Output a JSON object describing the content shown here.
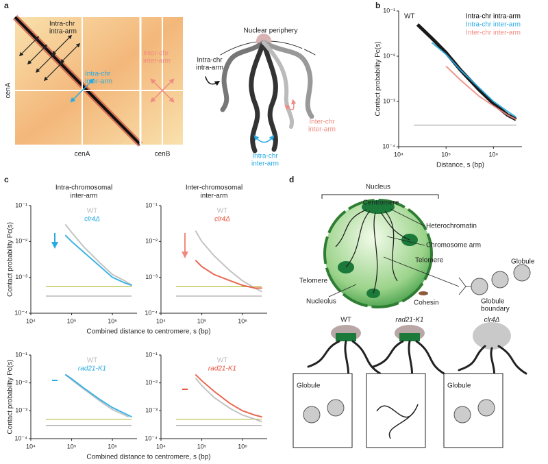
{
  "panel_letters": [
    "a",
    "b",
    "c",
    "d"
  ],
  "panel_a": {
    "heatmap": {
      "intra_intra": [
        "Intra-chr",
        "intra-arm"
      ],
      "intra_inter": [
        "Intra-chr",
        "inter-arm"
      ],
      "inter_inter": [
        "Inter-chr",
        "inter-arm"
      ],
      "y_label": "cenA",
      "x_labels": [
        "cenA",
        "cenB"
      ]
    },
    "sketch": {
      "periphery": "Nuclear periphery",
      "intra_intra": [
        "Intra-chr",
        "intra-arm"
      ],
      "inter_inter": [
        "Inter-chr",
        "inter-arm"
      ],
      "intra_inter": [
        "Intra-chr",
        "inter-arm"
      ]
    }
  },
  "chart_data": [
    {
      "type": "line",
      "title": "WT",
      "ylabel": "Contact probability Pc(s)",
      "xlabel": "Distance, s (bp)",
      "xlog": true,
      "ylog": true,
      "xlim": [
        10000,
        4000000
      ],
      "ylim": [
        0.0001,
        0.1
      ],
      "xticks": [
        {
          "value": 10000,
          "label": "10⁴"
        },
        {
          "value": 100000,
          "label": "10⁵"
        },
        {
          "value": 1000000,
          "label": "10⁶"
        }
      ],
      "yticks": [
        {
          "value": 0.0001,
          "label": "10⁻⁴"
        },
        {
          "value": 0.001,
          "label": "10⁻³"
        },
        {
          "value": 0.01,
          "label": "10⁻²"
        },
        {
          "value": 0.1,
          "label": "10⁻¹"
        }
      ],
      "legend": "upper right",
      "series": [
        {
          "name": "Intra-chr intra-arm",
          "color": "#000000",
          "x": [
            25000,
            50000,
            100000,
            200000,
            500000,
            1000000,
            2000000,
            3000000
          ],
          "values": [
            0.05,
            0.025,
            0.012,
            0.005,
            0.0018,
            0.0009,
            0.0005,
            0.0004
          ]
        },
        {
          "name": "Intra-chr inter-arm",
          "color": "#29abe2",
          "x": [
            50000,
            100000,
            200000,
            500000,
            1000000,
            2000000,
            3000000
          ],
          "values": [
            0.02,
            0.011,
            0.005,
            0.002,
            0.001,
            0.0006,
            0.00045
          ]
        },
        {
          "name": "Inter-chr inter-arm",
          "color": "#f08a80",
          "x": [
            100000,
            200000,
            500000,
            1000000,
            2000000,
            3000000
          ],
          "values": [
            0.006,
            0.003,
            0.0013,
            0.0008,
            0.0005,
            0.0004
          ]
        }
      ],
      "hlines": [
        {
          "value": 0.0003,
          "color": "#aaaaaa"
        }
      ]
    },
    {
      "type": "line",
      "title": [
        "Intra-chromosomal",
        "inter-arm"
      ],
      "ylabel": "Contact probability Pc(s)",
      "xlabel": "Combined distance to centromere, s (bp)",
      "xlog": true,
      "ylog": true,
      "xlim": [
        10000,
        4000000
      ],
      "ylim": [
        0.0001,
        0.1
      ],
      "xticks": [
        {
          "value": 10000,
          "label": "10⁴"
        },
        {
          "value": 100000,
          "label": "10⁵"
        },
        {
          "value": 1000000,
          "label": "10⁶"
        }
      ],
      "yticks": [
        {
          "value": 0.0001,
          "label": "10⁻⁴"
        },
        {
          "value": 0.001,
          "label": "10⁻³"
        },
        {
          "value": 0.01,
          "label": "10⁻²"
        },
        {
          "value": 0.1,
          "label": "10⁻¹"
        }
      ],
      "legend": "upper center",
      "series": [
        {
          "name": "WT",
          "color": "#bdbdbd",
          "x": [
            70000,
            100000,
            200000,
            500000,
            1000000,
            2000000,
            3000000
          ],
          "values": [
            0.03,
            0.018,
            0.007,
            0.0025,
            0.0012,
            0.0008,
            0.0006
          ]
        },
        {
          "name": "clr4Δ",
          "color": "#29abe2",
          "x": [
            70000,
            100000,
            200000,
            500000,
            1000000,
            2000000,
            3000000
          ],
          "values": [
            0.015,
            0.01,
            0.005,
            0.002,
            0.001,
            0.0007,
            0.0006
          ]
        }
      ],
      "hlines": [
        {
          "value": 0.00055,
          "color": "#b5bd3c"
        },
        {
          "value": 0.0003,
          "color": "#aaaaaa"
        }
      ]
    },
    {
      "type": "line",
      "title": [
        "Inter-chromosomal",
        "inter-arm"
      ],
      "xlog": true,
      "ylog": true,
      "xlim": [
        10000,
        4000000
      ],
      "ylim": [
        0.0001,
        0.1
      ],
      "xticks": [
        {
          "value": 10000,
          "label": "10⁴"
        },
        {
          "value": 100000,
          "label": "10⁵"
        },
        {
          "value": 1000000,
          "label": "10⁶"
        }
      ],
      "yticks": [
        {
          "value": 0.0001,
          "label": "10⁻⁴"
        },
        {
          "value": 0.001,
          "label": "10⁻³"
        },
        {
          "value": 0.01,
          "label": "10⁻²"
        },
        {
          "value": 0.1,
          "label": "10⁻¹"
        }
      ],
      "legend": "upper center",
      "series": [
        {
          "name": "WT",
          "color": "#bdbdbd",
          "x": [
            70000,
            100000,
            200000,
            500000,
            1000000,
            2000000,
            3000000
          ],
          "values": [
            0.02,
            0.01,
            0.004,
            0.0015,
            0.0008,
            0.0005,
            0.0004
          ]
        },
        {
          "name": "clr4Δ",
          "color": "#e8553e",
          "x": [
            70000,
            100000,
            200000,
            500000,
            1000000,
            2000000,
            3000000
          ],
          "values": [
            0.003,
            0.002,
            0.0012,
            0.0008,
            0.0006,
            0.0005,
            0.0005
          ]
        }
      ],
      "hlines": [
        {
          "value": 0.00055,
          "color": "#b5bd3c"
        },
        {
          "value": 0.0003,
          "color": "#aaaaaa"
        }
      ]
    },
    {
      "type": "line",
      "ylabel": "Contact probability Pc(s)",
      "xlabel": "Combined distance to centromere, s (bp)",
      "xlog": true,
      "ylog": true,
      "xlim": [
        10000,
        4000000
      ],
      "ylim": [
        0.0001,
        0.1
      ],
      "xticks": [
        {
          "value": 10000,
          "label": "10⁴"
        },
        {
          "value": 100000,
          "label": "10⁵"
        },
        {
          "value": 1000000,
          "label": "10⁶"
        }
      ],
      "yticks": [
        {
          "value": 0.0001,
          "label": "10⁻⁴"
        },
        {
          "value": 0.001,
          "label": "10⁻³"
        },
        {
          "value": 0.01,
          "label": "10⁻²"
        },
        {
          "value": 0.1,
          "label": "10⁻¹"
        }
      ],
      "legend": "upper center",
      "series": [
        {
          "name": "WT",
          "color": "#bdbdbd",
          "x": [
            70000,
            100000,
            200000,
            500000,
            1000000,
            2000000,
            2500000
          ],
          "values": [
            0.02,
            0.013,
            0.006,
            0.0022,
            0.0011,
            0.0007,
            0.0006
          ]
        },
        {
          "name": "rad21-K1",
          "color": "#29abe2",
          "x": [
            70000,
            100000,
            200000,
            500000,
            1000000,
            2000000,
            3000000
          ],
          "values": [
            0.02,
            0.014,
            0.0065,
            0.0025,
            0.0013,
            0.0008,
            0.0006
          ]
        }
      ],
      "hlines": [
        {
          "value": 0.0005,
          "color": "#b5bd3c"
        },
        {
          "value": 0.0003,
          "color": "#aaaaaa"
        }
      ]
    },
    {
      "type": "line",
      "xlog": true,
      "ylog": true,
      "xlim": [
        10000,
        4000000
      ],
      "ylim": [
        0.0001,
        0.1
      ],
      "xticks": [
        {
          "value": 10000,
          "label": "10⁴"
        },
        {
          "value": 100000,
          "label": "10⁵"
        },
        {
          "value": 1000000,
          "label": "10⁶"
        }
      ],
      "yticks": [
        {
          "value": 0.0001,
          "label": "10⁻⁴"
        },
        {
          "value": 0.001,
          "label": "10⁻³"
        },
        {
          "value": 0.01,
          "label": "10⁻²"
        },
        {
          "value": 0.1,
          "label": "10⁻¹"
        }
      ],
      "legend": "upper center",
      "series": [
        {
          "name": "WT",
          "color": "#bdbdbd",
          "x": [
            70000,
            100000,
            200000,
            500000,
            1000000,
            2000000,
            3000000
          ],
          "values": [
            0.015,
            0.008,
            0.003,
            0.0012,
            0.0007,
            0.0005,
            0.0004
          ]
        },
        {
          "name": "rad21-K1",
          "color": "#e8553e",
          "x": [
            70000,
            100000,
            200000,
            500000,
            1000000,
            2000000,
            3000000
          ],
          "values": [
            0.02,
            0.012,
            0.005,
            0.0018,
            0.001,
            0.0007,
            0.0006
          ]
        }
      ],
      "hlines": [
        {
          "value": 0.0005,
          "color": "#b5bd3c"
        },
        {
          "value": 0.0003,
          "color": "#aaaaaa"
        }
      ]
    }
  ],
  "panel_d": {
    "nucleus": "Nucleus",
    "centromere": "Centromere",
    "heterochromatin": "Heterochromatin",
    "chromosome_arm": "Chromosome arm",
    "telomere_right": "Telomere",
    "telomere_left": "Telomere",
    "nucleolus": "Nucleolus",
    "cohesin": "Cohesin",
    "globule": "Globule",
    "globule_boundary": [
      "Globule",
      "boundary"
    ],
    "strains": [
      "WT",
      "rad21-K1",
      "clr4Δ"
    ],
    "box_labels": [
      "Globule",
      "Globule"
    ]
  }
}
